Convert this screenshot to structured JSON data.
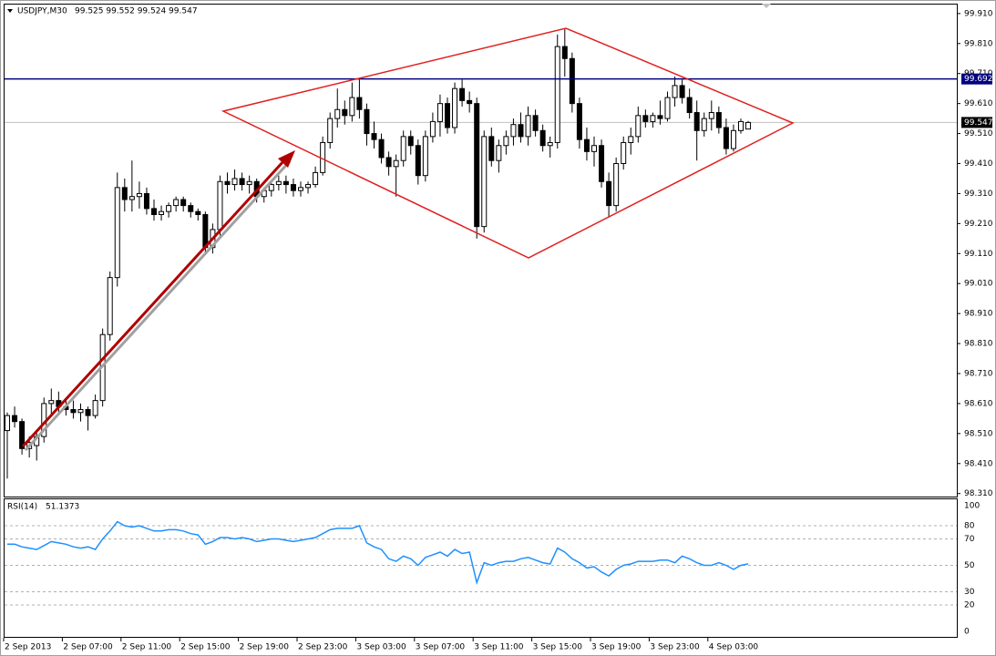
{
  "chart_data": [
    {
      "type": "candlestick",
      "title": "USDJPY,M30",
      "subtitle": "99.525 99.552 99.524 99.547",
      "categories": [
        "2 Sep 2013",
        null,
        null,
        null,
        null,
        null,
        null,
        null,
        "2 Sep 07:00",
        null,
        null,
        null,
        null,
        null,
        null,
        null,
        "2 Sep 11:00",
        null,
        null,
        null,
        null,
        null,
        null,
        null,
        "2 Sep 15:00",
        null,
        null,
        null,
        null,
        null,
        null,
        null,
        "2 Sep 19:00",
        null,
        null,
        null,
        null,
        null,
        null,
        null,
        "2 Sep 23:00",
        null,
        null,
        null,
        null,
        null,
        null,
        null,
        "3 Sep 03:00",
        null,
        null,
        null,
        null,
        null,
        null,
        null,
        "3 Sep 07:00",
        null,
        null,
        null,
        null,
        null,
        null,
        null,
        "3 Sep 11:00",
        null,
        null,
        null,
        null,
        null,
        null,
        null,
        "3 Sep 15:00",
        null,
        null,
        null,
        null,
        null,
        null,
        null,
        "3 Sep 19:00",
        null,
        null,
        null,
        null,
        null,
        null,
        null,
        "3 Sep 23:00",
        null,
        null,
        null,
        null,
        null,
        null,
        null,
        "4 Sep 03:00",
        null,
        null,
        null,
        null,
        null
      ],
      "open": [
        98.52,
        98.57,
        98.55,
        98.46,
        98.47,
        98.5,
        98.61,
        98.62,
        98.6,
        98.59,
        98.58,
        98.59,
        98.57,
        98.62,
        98.84,
        99.03,
        99.33,
        99.29,
        99.3,
        99.31,
        99.26,
        99.24,
        99.25,
        99.27,
        99.29,
        99.27,
        99.25,
        99.24,
        99.13,
        99.19,
        99.35,
        99.34,
        99.36,
        99.34,
        99.35,
        99.3,
        99.32,
        99.34,
        99.35,
        99.34,
        99.32,
        99.33,
        99.34,
        99.38,
        99.48,
        99.56,
        99.59,
        99.57,
        99.63,
        99.59,
        99.51,
        99.49,
        99.43,
        99.4,
        99.42,
        99.5,
        99.47,
        99.37,
        99.5,
        99.55,
        99.61,
        99.53,
        99.66,
        99.62,
        99.61,
        99.2,
        99.5,
        99.42,
        99.47,
        99.5,
        99.54,
        99.5,
        99.57,
        99.52,
        99.47,
        99.48,
        99.8,
        99.76,
        99.61,
        99.49,
        99.45,
        99.47,
        99.35,
        99.27,
        99.41,
        99.48,
        99.5,
        99.57,
        99.55,
        99.57,
        99.56,
        99.63,
        99.67,
        99.63,
        99.58,
        99.52,
        99.56,
        99.58,
        99.53,
        99.46,
        99.52,
        99.525
      ],
      "high": [
        98.58,
        98.6,
        98.56,
        98.5,
        98.52,
        98.63,
        98.66,
        98.65,
        98.63,
        98.62,
        98.61,
        98.6,
        98.64,
        98.86,
        99.05,
        99.38,
        99.36,
        99.42,
        99.35,
        99.33,
        99.29,
        99.27,
        99.28,
        99.3,
        99.3,
        99.28,
        99.26,
        99.25,
        99.21,
        99.37,
        99.38,
        99.39,
        99.38,
        99.37,
        99.36,
        99.33,
        99.35,
        99.37,
        99.37,
        99.36,
        99.35,
        99.35,
        99.4,
        99.5,
        99.58,
        99.66,
        99.62,
        99.68,
        99.69,
        99.61,
        99.55,
        99.51,
        99.45,
        99.44,
        99.52,
        99.52,
        99.49,
        99.52,
        99.58,
        99.64,
        99.63,
        99.68,
        99.69,
        99.65,
        99.63,
        99.52,
        99.53,
        99.49,
        99.52,
        99.56,
        99.58,
        99.6,
        99.59,
        99.54,
        99.5,
        99.84,
        99.86,
        99.78,
        99.63,
        99.53,
        99.5,
        99.49,
        99.38,
        99.43,
        99.5,
        99.53,
        99.6,
        99.59,
        99.58,
        99.62,
        99.65,
        99.7,
        99.69,
        99.66,
        99.62,
        99.58,
        99.62,
        99.6,
        99.56,
        99.54,
        99.56,
        99.552
      ],
      "low": [
        98.36,
        98.53,
        98.44,
        98.43,
        98.42,
        98.48,
        98.57,
        98.58,
        98.57,
        98.56,
        98.55,
        98.52,
        98.56,
        98.6,
        98.82,
        99.0,
        99.25,
        99.25,
        99.26,
        99.24,
        99.22,
        99.22,
        99.23,
        99.25,
        99.25,
        99.23,
        99.22,
        99.11,
        99.11,
        99.17,
        99.31,
        99.32,
        99.32,
        99.31,
        99.28,
        99.28,
        99.3,
        99.32,
        99.31,
        99.3,
        99.3,
        99.31,
        99.33,
        99.37,
        99.46,
        99.53,
        99.54,
        99.55,
        99.56,
        99.47,
        99.46,
        99.41,
        99.37,
        99.3,
        99.4,
        99.44,
        99.34,
        99.35,
        99.48,
        99.5,
        99.51,
        99.51,
        99.6,
        99.58,
        99.16,
        99.18,
        99.4,
        99.38,
        99.44,
        99.47,
        99.48,
        99.47,
        99.5,
        99.45,
        99.43,
        99.46,
        99.7,
        99.58,
        99.46,
        99.42,
        99.4,
        99.33,
        99.23,
        99.25,
        99.39,
        99.44,
        99.48,
        99.53,
        99.53,
        99.54,
        99.55,
        99.6,
        99.61,
        99.56,
        99.42,
        99.5,
        99.52,
        99.51,
        99.44,
        99.45,
        99.51,
        99.524
      ],
      "close": [
        98.57,
        98.55,
        98.46,
        98.48,
        98.5,
        98.61,
        98.62,
        98.6,
        98.59,
        98.58,
        98.59,
        98.57,
        98.62,
        98.84,
        99.03,
        99.33,
        99.29,
        99.3,
        99.31,
        99.26,
        99.24,
        99.25,
        99.27,
        99.29,
        99.27,
        99.25,
        99.24,
        99.13,
        99.19,
        99.35,
        99.34,
        99.36,
        99.34,
        99.35,
        99.3,
        99.32,
        99.34,
        99.35,
        99.34,
        99.32,
        99.33,
        99.34,
        99.38,
        99.48,
        99.56,
        99.59,
        99.57,
        99.63,
        99.59,
        99.51,
        99.49,
        99.43,
        99.4,
        99.42,
        99.5,
        99.47,
        99.37,
        99.5,
        99.55,
        99.61,
        99.53,
        99.66,
        99.62,
        99.61,
        99.2,
        99.5,
        99.42,
        99.47,
        99.5,
        99.54,
        99.5,
        99.57,
        99.52,
        99.47,
        99.48,
        99.8,
        99.76,
        99.61,
        99.49,
        99.45,
        99.47,
        99.35,
        99.27,
        99.41,
        99.48,
        99.5,
        99.57,
        99.55,
        99.57,
        99.56,
        99.63,
        99.67,
        99.63,
        99.58,
        99.52,
        99.56,
        99.58,
        99.53,
        99.46,
        99.52,
        99.55,
        99.547
      ],
      "last_price": {
        "value": 99.547,
        "label": "99.547"
      },
      "hline": {
        "value": 99.692,
        "label": "99.692",
        "color": "#000080"
      },
      "ylim": [
        98.3,
        99.94
      ],
      "yticks": [
        {
          "value": 99.91,
          "label": "99.910"
        },
        {
          "value": 99.81,
          "label": "99.810"
        },
        {
          "value": 99.71,
          "label": "99.710"
        },
        {
          "value": 99.61,
          "label": "99.610"
        },
        {
          "value": 99.51,
          "label": "99.510"
        },
        {
          "value": 99.41,
          "label": "99.410"
        },
        {
          "value": 99.31,
          "label": "99.310"
        },
        {
          "value": 99.21,
          "label": "99.210"
        },
        {
          "value": 99.11,
          "label": "99.110"
        },
        {
          "value": 99.01,
          "label": "99.010"
        },
        {
          "value": 98.91,
          "label": "98.910"
        },
        {
          "value": 98.81,
          "label": "98.810"
        },
        {
          "value": 98.71,
          "label": "98.710"
        },
        {
          "value": 98.61,
          "label": "98.610"
        },
        {
          "value": 98.51,
          "label": "98.510"
        },
        {
          "value": 98.41,
          "label": "98.410"
        },
        {
          "value": 98.31,
          "label": "98.310"
        }
      ]
    },
    {
      "type": "line",
      "title": "RSI(14)",
      "subtitle": "51.1373",
      "color": "#1e90ff",
      "values": [
        66,
        66,
        64,
        63,
        62,
        65,
        68,
        67,
        66,
        64,
        63,
        64,
        62,
        70,
        76,
        83,
        80,
        79,
        80,
        78,
        76,
        76,
        77,
        77,
        76,
        74,
        73,
        66,
        68,
        71,
        71,
        70,
        71,
        70,
        68,
        69,
        70,
        70,
        69,
        68,
        69,
        70,
        71,
        74,
        77,
        78,
        78,
        78,
        80,
        67,
        64,
        62,
        55,
        53,
        57,
        55,
        50,
        56,
        58,
        60,
        57,
        62,
        59,
        60,
        37,
        52,
        50,
        52,
        53,
        53,
        55,
        56,
        54,
        52,
        51,
        63,
        60,
        55,
        52,
        48,
        49,
        45,
        42,
        47,
        50,
        51,
        53,
        53,
        53,
        54,
        54,
        52,
        57,
        55,
        52,
        50,
        50,
        52,
        50,
        47,
        50,
        51.1373
      ],
      "ylim": [
        0,
        100
      ],
      "yticks": [
        100,
        80,
        70,
        50,
        30,
        20,
        0
      ],
      "grid": true
    }
  ]
}
